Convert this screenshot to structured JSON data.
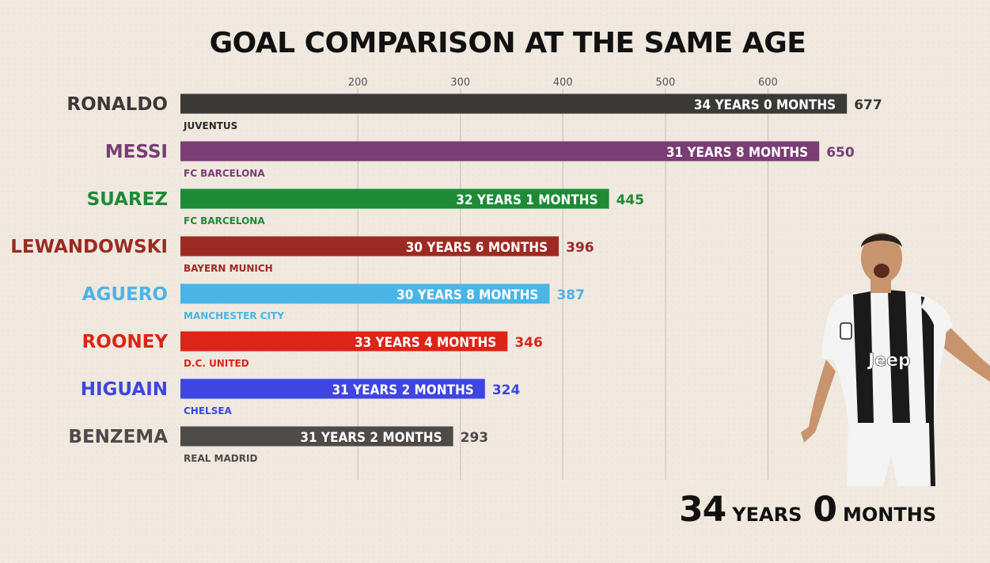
{
  "chart_data": {
    "type": "bar",
    "orientation": "horizontal",
    "title": "GOAL COMPARISON AT THE SAME AGE",
    "x_ticks": [
      200,
      300,
      400,
      500,
      600
    ],
    "xlim": [
      27,
      700
    ],
    "grid": true,
    "bars": [
      {
        "name": "RONALDO",
        "club": "JUVENTUS",
        "age": "34 YEARS 0 MONTHS",
        "value": 677,
        "color": "#3b3838",
        "label_color": "#3b3838",
        "club_color": "#2a2a2a"
      },
      {
        "name": "MESSI",
        "club": "FC BARCELONA",
        "age": "31 YEARS 8 MONTHS",
        "value": 650,
        "color": "#7a3d74",
        "label_color": "#7a3d74",
        "club_color": "#7a3d74"
      },
      {
        "name": "SUAREZ",
        "club": "FC BARCELONA",
        "age": "32 YEARS 1 MONTHS",
        "value": 445,
        "color": "#1f8a36",
        "label_color": "#1f8a36",
        "club_color": "#1f8a36"
      },
      {
        "name": "LEWANDOWSKI",
        "club": "BAYERN MUNICH",
        "age": "30 YEARS 6 MONTHS",
        "value": 396,
        "color": "#9b2b22",
        "label_color": "#9b2b22",
        "club_color": "#9b2b22"
      },
      {
        "name": "AGUERO",
        "club": "MANCHESTER CITY",
        "age": "30 YEARS 8 MONTHS",
        "value": 387,
        "color": "#4bb4e6",
        "label_color": "#4bb4e6",
        "club_color": "#4bb4e6"
      },
      {
        "name": "ROONEY",
        "club": "D.C. UNITED",
        "age": "33 YEARS 4 MONTHS",
        "value": 346,
        "color": "#dc2418",
        "label_color": "#dc2418",
        "club_color": "#dc2418"
      },
      {
        "name": "HIGUAIN",
        "club": "CHELSEA",
        "age": "31 YEARS 2 MONTHS",
        "value": 324,
        "color": "#3f45e2",
        "label_color": "#3f45e2",
        "club_color": "#3f45e2"
      },
      {
        "name": "BENZEMA",
        "club": "REAL MADRID",
        "age": "31 YEARS 2 MONTHS",
        "value": 293,
        "color": "#4d4a4a",
        "label_color": "#4d4a4a",
        "club_color": "#4d4a4a"
      }
    ]
  },
  "counter": {
    "years_value": "34",
    "years_unit": "YEARS",
    "months_value": "0",
    "months_unit": "MONTHS"
  },
  "player_image": {
    "icon": "footballer-celebrating-photo",
    "shirt_text": "Jeep",
    "shirt_primary": "#1a1a1a",
    "shirt_secondary": "#f4f4f4"
  }
}
